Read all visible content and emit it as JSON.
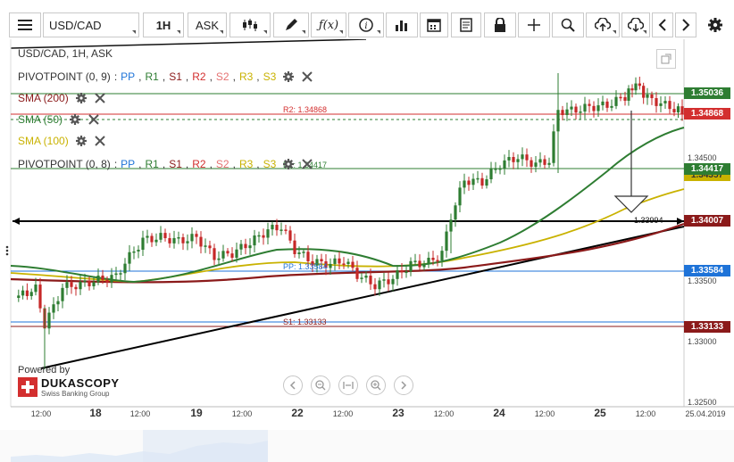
{
  "toolbar": {
    "symbol": "USD/CAD",
    "timeframe": "1H",
    "price_side": "ASK"
  },
  "chart": {
    "header": "USD/CAD, 1H, ASK",
    "legend": [
      {
        "name": "PIVOTPOINT (0, 9)",
        "levels": [
          "PP",
          "R1",
          "S1",
          "R2",
          "S2",
          "R3",
          "S3"
        ],
        "color": "#333333"
      },
      {
        "name": "SMA (200)",
        "color": "#8b1a1a"
      },
      {
        "name": "SMA (50)",
        "color": "#2e7d32"
      },
      {
        "name": "SMA (100)",
        "color": "#c9b200"
      },
      {
        "name": "PIVOTPOINT (0, 8)",
        "levels": [
          "PP",
          "R1",
          "S1",
          "R2",
          "S2",
          "R3",
          "S3"
        ],
        "color": "#333333"
      }
    ],
    "level_colors": {
      "PP": "#1e73d8",
      "R1": "#2e7d32",
      "S1": "#8b1a1a",
      "R2": "#d32f2f",
      "S2": "#e57373",
      "R3": "#c9b200",
      "S3": "#c9b200"
    },
    "level_labels": {
      "r2": "R2: 1.34868",
      "r1": "R1: 1.34417",
      "pp": "PP: 1.33584",
      "s1": "S1: 1.33133",
      "horizontal": "1.33994"
    },
    "price_labels": [
      {
        "text": "1.35036",
        "color": "#2e7d32"
      },
      {
        "text": "1.34868",
        "color": "#d32f2f"
      },
      {
        "text": "1.34417",
        "color": "#2e7d32"
      },
      {
        "text": "1.34357",
        "color": "#c9b200"
      },
      {
        "text": "1.34007",
        "color": "#8b1a1a"
      },
      {
        "text": "1.33584",
        "color": "#1e73d8"
      },
      {
        "text": "1.33133",
        "color": "#8b1a1a"
      }
    ],
    "price_ticks": [
      "1.34500",
      "1.33500",
      "1.33000",
      "1.32500"
    ],
    "time_labels": [
      "12:00",
      "18",
      "12:00",
      "19",
      "12:00",
      "22",
      "12:00",
      "23",
      "12:00",
      "24",
      "12:00",
      "25",
      "12:00",
      "25.04.2019"
    ],
    "powered_by": "Powered by",
    "brand": "DUKASCOPY",
    "brand_sub": "Swiss Banking Group"
  }
}
